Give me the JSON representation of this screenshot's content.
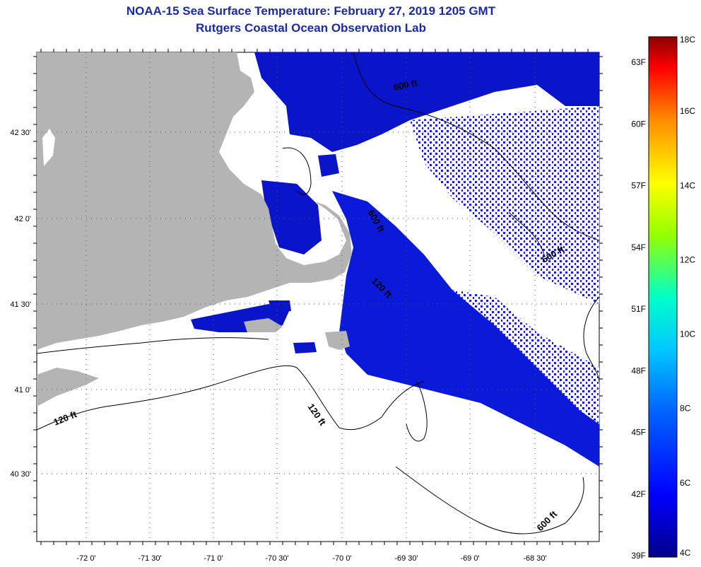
{
  "title": {
    "line1": "NOAA-15 Sea Surface Temperature:  February 27, 2019 1205 GMT",
    "line2": "Rutgers Coastal Ocean Observation Lab"
  },
  "axes": {
    "lon_labels": [
      "-72 0'",
      "-71 30'",
      "-71 0'",
      "-70 30'",
      "-70 0'",
      "-69 30'",
      "-69 0'",
      "-68 30'"
    ],
    "lat_labels": [
      "42 30'",
      "42 0'",
      "41 30'",
      "41 0'",
      "40 30'"
    ]
  },
  "contour_labels": [
    "600 ft",
    "600 ft",
    "120 ft",
    "600 ft",
    "120 ft",
    "120 ft",
    "600 ft"
  ],
  "colorbar": {
    "celsius": [
      "18C",
      "16C",
      "14C",
      "12C",
      "10C",
      "8C",
      "6C",
      "4C"
    ],
    "fahrenheit": [
      "63F",
      "60F",
      "57F",
      "54F",
      "51F",
      "48F",
      "45F",
      "42F",
      "39F"
    ]
  },
  "colors": {
    "land": "#b4b4b4",
    "water_cold": "#0a14c8",
    "title": "#1a2aa0"
  }
}
